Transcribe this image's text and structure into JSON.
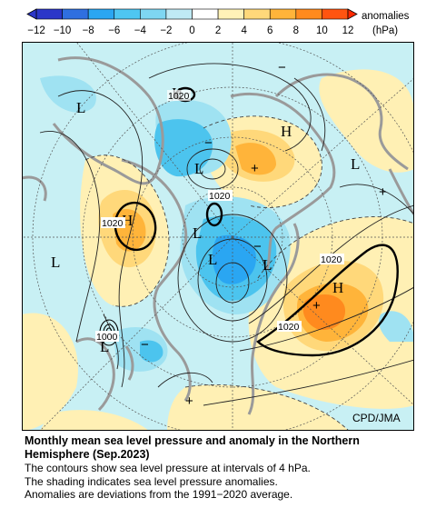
{
  "legend": {
    "unit_label_1": "anomalies",
    "unit_label_2": "(hPa)",
    "ticks": [
      "−12",
      "−10",
      "−8",
      "−6",
      "−4",
      "−2",
      "0",
      "2",
      "4",
      "6",
      "8",
      "10",
      "12"
    ],
    "colors": [
      "#2b36c8",
      "#2f6fe0",
      "#2aa6f2",
      "#4ec6f2",
      "#7ed6f2",
      "#bfe9f4",
      "#ffffff",
      "#fff2b8",
      "#ffd87a",
      "#ffb43a",
      "#ff8a1e",
      "#ff5410"
    ]
  },
  "map": {
    "credit": "CPD/JMA",
    "labels": {
      "H": "H",
      "L": "L",
      "plus": "+",
      "minus": "−",
      "iso_1020": "1020",
      "iso_1000": "1000"
    },
    "colors": {
      "ocean": "#c8f0f4",
      "land_outline": "#9a9a9a",
      "positive_light": "#fff0b4",
      "positive_mid": "#ffc860",
      "positive_strong": "#ff9a30",
      "negative_light": "#9fe2f2",
      "negative_mid": "#4cc4ee",
      "negative_strong": "#2a9fe8"
    }
  },
  "caption": {
    "title_1": "Monthly mean sea level pressure and anomaly in the Northern",
    "title_2": "Hemisphere (Sep.2023)",
    "line_1": "The contours show sea level pressure at intervals of 4 hPa.",
    "line_2": "The shading indicates sea level pressure anomalies.",
    "line_3": "Anomalies are deviations from the 1991−2020 average."
  }
}
